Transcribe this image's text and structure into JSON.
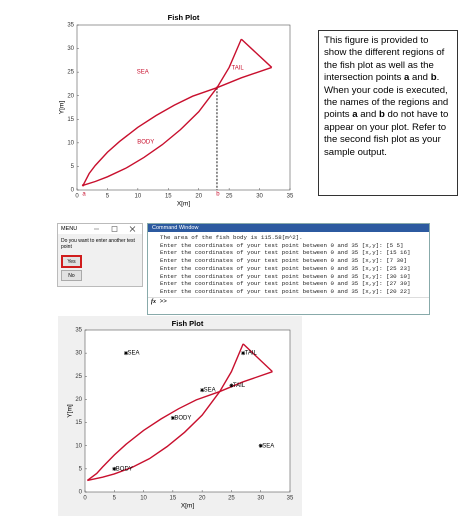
{
  "chart_data": [
    {
      "type": "line",
      "title": "Fish Plot",
      "x_label": "X[m]",
      "y_label": "Y[m]",
      "xlim": [
        0,
        35
      ],
      "ylim": [
        0,
        35
      ],
      "xticks": [
        0,
        5,
        10,
        15,
        20,
        25,
        30,
        35
      ],
      "yticks": [
        0,
        5,
        10,
        15,
        20,
        25,
        30,
        35
      ],
      "series": [
        {
          "color": "#c8102e",
          "x": [
            1,
            2,
            3,
            5,
            7,
            10,
            13,
            16,
            19,
            23,
            27,
            32
          ],
          "y": [
            1,
            3.5,
            5.2,
            8,
            10.3,
            13.3,
            15.8,
            18,
            19.9,
            21.7,
            23.8,
            26
          ]
        },
        {
          "color": "#c8102e",
          "x": [
            1,
            3,
            5,
            8,
            11,
            14,
            17,
            20,
            23,
            25,
            27
          ],
          "y": [
            1,
            1.8,
            2.8,
            4.6,
            6.9,
            9.6,
            12.8,
            16.6,
            21.7,
            26,
            32
          ]
        },
        {
          "color": "#c8102e",
          "x": [
            27,
            32
          ],
          "y": [
            32,
            26
          ]
        }
      ],
      "region_labels": [
        {
          "text": "SEA",
          "x": 10.8,
          "y": 25,
          "color": "#c8102e"
        },
        {
          "text": "TAIL",
          "x": 26.4,
          "y": 25.9,
          "color": "#c8102e"
        },
        {
          "text": "BODY",
          "x": 11.3,
          "y": 10.2,
          "color": "#c8102e"
        }
      ],
      "intersections": [
        {
          "label": "a",
          "x": 1,
          "y": 1,
          "drop_line": false,
          "color": "#c8102e"
        },
        {
          "label": "b",
          "x": 23,
          "y": 21.7,
          "drop_line": true,
          "color": "#c8102e"
        }
      ]
    },
    {
      "type": "scatter",
      "title": "Fish Plot",
      "x_label": "X[m]",
      "y_label": "Y[m]",
      "xlim": [
        0,
        35
      ],
      "ylim": [
        0,
        35
      ],
      "xticks": [
        0,
        5,
        10,
        15,
        20,
        25,
        30,
        35
      ],
      "yticks": [
        0,
        5,
        10,
        15,
        20,
        25,
        30,
        35
      ],
      "series": [
        {
          "color": "#c8102e",
          "x": [
            0.4,
            2,
            3,
            5,
            7,
            10,
            13,
            16,
            19,
            23,
            27,
            32
          ],
          "y": [
            2.5,
            4,
            5.4,
            8,
            10.3,
            13.3,
            15.8,
            18,
            19.9,
            21.7,
            23.8,
            26
          ]
        },
        {
          "color": "#c8102e",
          "x": [
            0.4,
            3,
            5,
            8,
            11,
            14,
            17,
            20,
            23,
            25,
            27
          ],
          "y": [
            2.5,
            3.2,
            3.9,
            5.3,
            7.2,
            9.8,
            12.9,
            16.6,
            21.7,
            26,
            32
          ]
        },
        {
          "color": "#c8102e",
          "x": [
            27,
            32
          ],
          "y": [
            32,
            26
          ]
        }
      ],
      "points": {
        "color": "#000000",
        "x": [
          7,
          27,
          20,
          25,
          15,
          30,
          5
        ],
        "y": [
          30,
          30,
          22,
          23,
          16,
          10,
          5
        ],
        "labels": [
          "SEA",
          "TAIL",
          "SEA",
          "TAIL",
          "BODY",
          "SEA",
          "BODY"
        ]
      }
    }
  ],
  "note": [
    {
      "text": "This figure is provided to show the different regions of the fish plot as well as the intersection points ",
      "bold": false
    },
    {
      "text": "a",
      "bold": true
    },
    {
      "text": " and ",
      "bold": false
    },
    {
      "text": "b",
      "bold": true
    },
    {
      "text": ". When your code is executed, the names of the regions and points ",
      "bold": false
    },
    {
      "text": "a",
      "bold": true
    },
    {
      "text": " and ",
      "bold": false
    },
    {
      "text": "b",
      "bold": true
    },
    {
      "text": " do not have to appear on your plot. Refer to the second fish plot as your sample output.",
      "bold": false
    }
  ],
  "menu": {
    "title": "MENU",
    "question": "Do you want to enter another test point",
    "buttons": [
      "Yes",
      "No"
    ]
  },
  "command_window": {
    "title": "Command Window",
    "lines": [
      "The area of the fish body is 115.58[m^2].",
      "Enter the coordinates of your test point between 0 and 35 [x,y]: [5 5]",
      "Enter the coordinates of your test point between 0 and 35 [x,y]: [15 16]",
      "Enter the coordinates of your test point between 0 and 35 [x,y]: [7 30]",
      "Enter the coordinates of your test point between 0 and 35 [x,y]: [25 23]",
      "Enter the coordinates of your test point between 0 and 35 [x,y]: [30 10]",
      "Enter the coordinates of your test point between 0 and 35 [x,y]: [27 30]",
      "Enter the coordinates of your test point between 0 and 35 [x,y]: [20 22]"
    ],
    "prompt_icon": "fx",
    "prompt": ">>"
  }
}
